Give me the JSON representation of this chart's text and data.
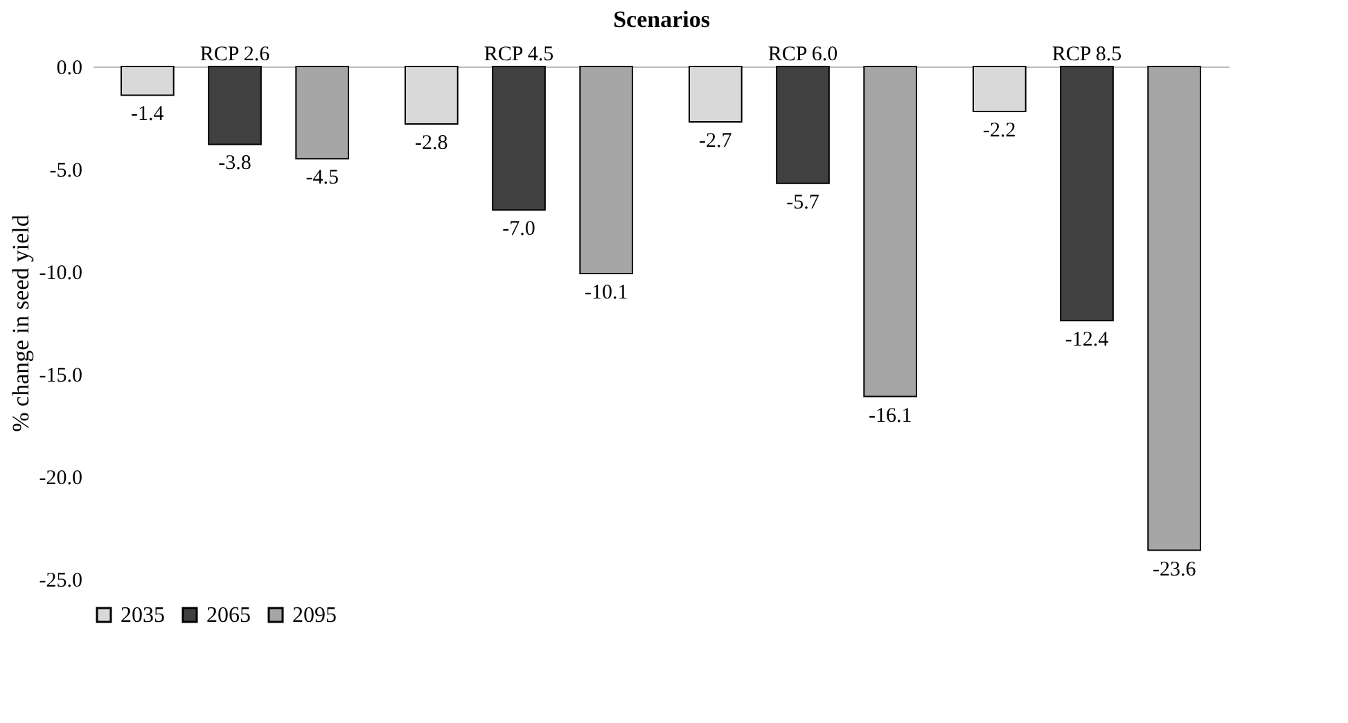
{
  "chart_data": {
    "type": "bar",
    "xlabel": "Scenarios",
    "ylabel": "% change in seed yield",
    "categories": [
      "RCP 2.6",
      "RCP 4.5",
      "RCP 6.0",
      "RCP 8.5"
    ],
    "series": [
      {
        "name": "2035",
        "color": "#d9d9d9",
        "values": [
          -1.4,
          -2.8,
          -2.7,
          -2.2
        ],
        "value_labels": [
          "-1.4",
          "-2.8",
          "-2.7",
          "-2.2"
        ]
      },
      {
        "name": "2065",
        "color": "#404040",
        "values": [
          -3.8,
          -7.0,
          -5.7,
          -12.4
        ],
        "value_labels": [
          "-3.8",
          "-7.0",
          "-5.7",
          "-12.4"
        ]
      },
      {
        "name": "2095",
        "color": "#a6a6a6",
        "values": [
          -4.5,
          -10.1,
          -16.1,
          -23.6
        ],
        "value_labels": [
          "-4.5",
          "-10.1",
          "-16.1",
          "-23.6"
        ]
      }
    ],
    "ylim": [
      -25,
      0
    ],
    "yticks": [
      {
        "value": 0,
        "label": "0.0"
      },
      {
        "value": -5,
        "label": "-5.0"
      },
      {
        "value": -10,
        "label": "-10.0"
      },
      {
        "value": -15,
        "label": "-15.0"
      },
      {
        "value": -20,
        "label": "-20.0"
      },
      {
        "value": -25,
        "label": "-25.0"
      }
    ],
    "grid": false,
    "legend": "bottom"
  }
}
